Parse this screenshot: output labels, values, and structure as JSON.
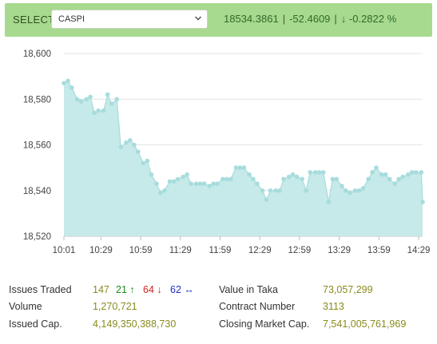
{
  "header": {
    "select_label": "SELECT",
    "select_value": "CASPI",
    "index_value": "18534.3861",
    "change": "-52.4609",
    "change_pct": "↓ -0.2822 %",
    "separator": "|"
  },
  "chart_data": {
    "type": "area",
    "x_ticks": [
      "10:01",
      "10:29",
      "10:59",
      "11:29",
      "11:59",
      "12:29",
      "12:59",
      "13:29",
      "13:59",
      "14:29"
    ],
    "y_ticks": [
      "18,600",
      "18,580",
      "18,560",
      "18,540",
      "18,520"
    ],
    "ylim": [
      18520,
      18600
    ],
    "xlim": [
      "10:01",
      "14:32"
    ],
    "grid": true,
    "colors": {
      "fill": "#c6e9e9",
      "line": "#a8dcdc",
      "point": "#a8dcdc",
      "grid": "#e3e3e3"
    },
    "x": [
      "10:01",
      "10:04",
      "10:07",
      "10:11",
      "10:14",
      "10:18",
      "10:21",
      "10:24",
      "10:27",
      "10:31",
      "10:34",
      "10:37",
      "10:41",
      "10:44",
      "10:48",
      "10:51",
      "10:54",
      "10:57",
      "11:01",
      "11:04",
      "11:07",
      "11:11",
      "11:14",
      "11:17",
      "11:21",
      "11:24",
      "11:27",
      "11:31",
      "11:34",
      "11:37",
      "11:41",
      "11:44",
      "11:47",
      "11:51",
      "11:54",
      "11:57",
      "12:01",
      "12:04",
      "12:07",
      "12:11",
      "12:14",
      "12:17",
      "12:21",
      "12:24",
      "12:27",
      "12:31",
      "12:34",
      "12:37",
      "12:41",
      "12:44",
      "12:47",
      "12:51",
      "12:54",
      "12:57",
      "13:01",
      "13:04",
      "13:07",
      "13:11",
      "13:14",
      "13:17",
      "13:21",
      "13:24",
      "13:27",
      "13:31",
      "13:34",
      "13:37",
      "13:41",
      "13:44",
      "13:47",
      "13:51",
      "13:54",
      "13:57",
      "14:01",
      "14:04",
      "14:07",
      "14:11",
      "14:14",
      "14:17",
      "14:21",
      "14:24",
      "14:27",
      "14:31",
      "14:32"
    ],
    "values": [
      18587,
      18588,
      18585,
      18580,
      18579,
      18580,
      18581,
      18574,
      18575,
      18575,
      18582,
      18578,
      18580,
      18559,
      18561,
      18562,
      18560,
      18557,
      18552,
      18553,
      18547,
      18543,
      18539,
      18540,
      18544,
      18544,
      18545,
      18546,
      18547,
      18543,
      18543,
      18543,
      18543,
      18542,
      18543,
      18543,
      18545,
      18545,
      18545,
      18550,
      18550,
      18550,
      18547,
      18545,
      18543,
      18540,
      18536,
      18540,
      18540,
      18540,
      18545,
      18546,
      18547,
      18546,
      18545,
      18540,
      18548,
      18548,
      18548,
      18548,
      18535,
      18545,
      18545,
      18542,
      18540,
      18539,
      18540,
      18540,
      18541,
      18545,
      18548,
      18550,
      18547,
      18547,
      18545,
      18543,
      18545,
      18546,
      18547,
      18548,
      18548,
      18548,
      18535
    ]
  },
  "stats": {
    "issues_traded_label": "Issues Traded",
    "issues_traded": "147",
    "advances": "21",
    "declines": "64",
    "unchanged": "62",
    "volume_label": "Volume",
    "volume": "1,270,721",
    "issued_cap_label": "Issued Cap.",
    "issued_cap": "4,149,350,388,730",
    "value_label": "Value in Taka",
    "value": "73,057,299",
    "contract_label": "Contract Number",
    "contract": "3113",
    "closing_cap_label": "Closing Market Cap.",
    "closing_cap": "7,541,005,761,969"
  }
}
